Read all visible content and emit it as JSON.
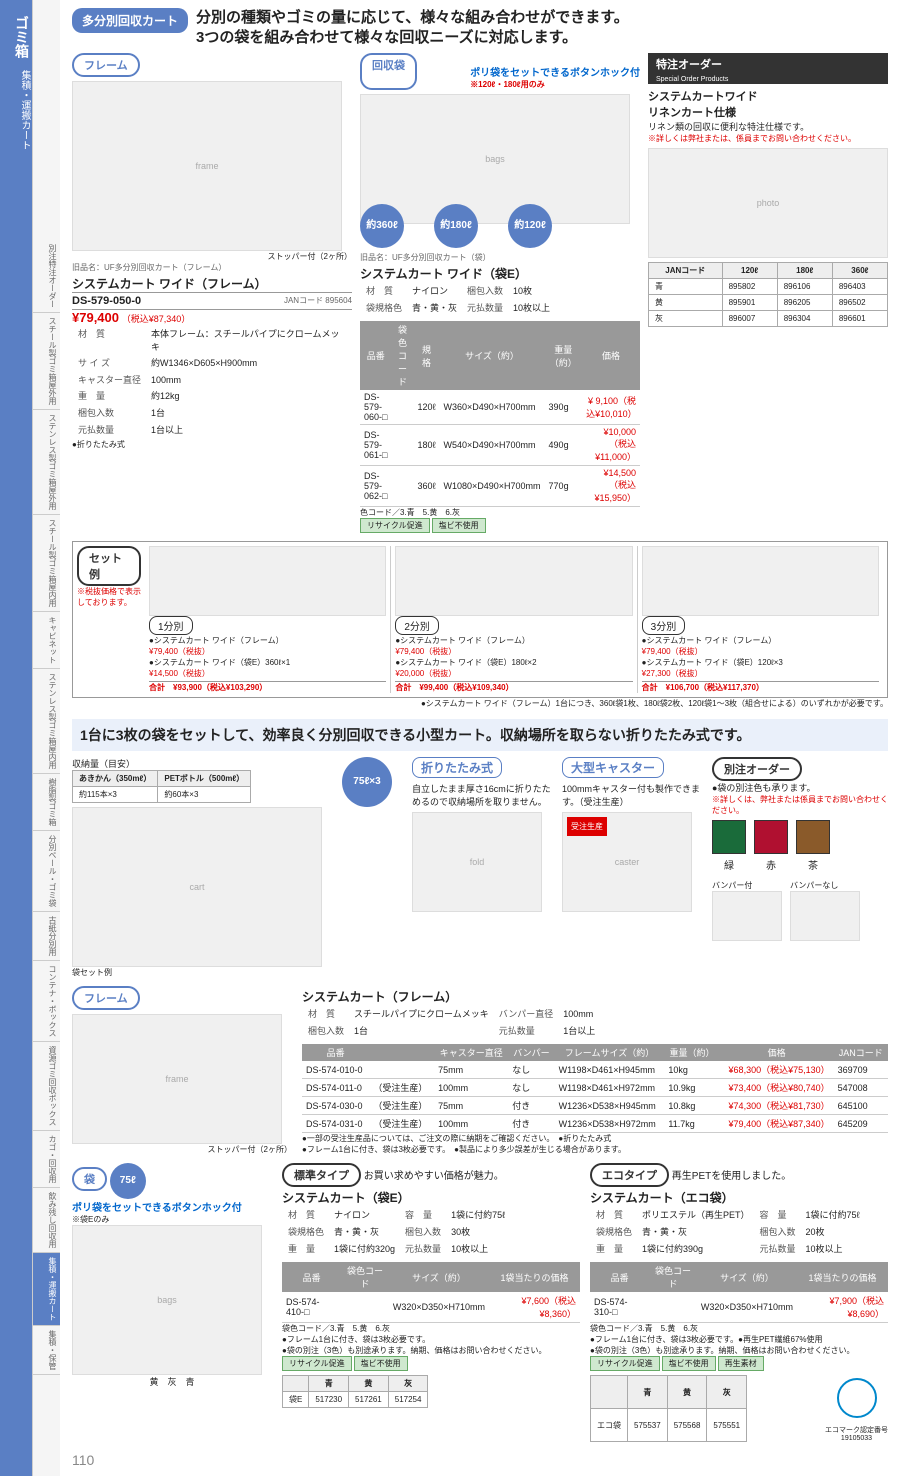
{
  "page_number": "110",
  "sidebar": {
    "main": "ゴミ箱",
    "sub": "集積・運搬カート"
  },
  "side_tabs": [
    "別注特注オーダー",
    "スチール製ゴミ箱屋外用",
    "ステンレス製ゴミ箱屋外用",
    "スチール製ゴミ箱屋内用",
    "キャビネット",
    "ステンレス製ゴミ箱屋内用",
    "樹脂製ゴミ箱",
    "分別ペール・ゴミ袋",
    "古紙分別用",
    "コンテナ・ボックス",
    "資源ゴミ回収ボックス",
    "カゴ・回収用",
    "飲み残し回収用",
    "集積・運搬カート",
    "集積・保管"
  ],
  "active_tab": 13,
  "section1": {
    "badge": "多分別回収カート",
    "lead": "分別の種類やゴミの量に応じて、様々な組み合わせができます。\n3つの袋を組み合わせて様々な回収ニーズに対応します。",
    "frame": {
      "tag": "フレーム",
      "caption": "ストッパー付（2ヶ所）",
      "old": "旧品名：UF多分別回収カート（フレーム）",
      "name": "システムカート ワイド（フレーム）",
      "sku": "DS-579-050-0",
      "jan": "JANコード 895604",
      "price": "¥79,400",
      "taxin": "（税込¥87,340）",
      "specs": [
        [
          "材　質",
          "本体フレーム：スチールパイプにクロームメッキ"
        ],
        [
          "サ イ ズ",
          "約W1346×D605×H900mm"
        ],
        [
          "キャスター直径",
          "100mm"
        ],
        [
          "重　量",
          "約12kg"
        ],
        [
          "梱包入数",
          "1台"
        ],
        [
          "元払数量",
          "1台以上"
        ]
      ],
      "fold": "●折りたたみ式"
    },
    "bags": {
      "tag": "回収袋",
      "note": "ポリ袋をセットできるボタンホック付",
      "note2": "※120ℓ・180ℓ用のみ",
      "vols": [
        "約360ℓ",
        "約180ℓ",
        "約120ℓ"
      ],
      "old": "旧品名：UF多分別回収カート（袋）",
      "name": "システムカート ワイド（袋E）",
      "specs": [
        [
          "材　質",
          "ナイロン"
        ],
        [
          "梱包入数",
          "10枚"
        ],
        [
          "袋規格色",
          "青・黄・灰"
        ],
        [
          "元払数量",
          "10枚以上"
        ]
      ],
      "th": [
        "品番",
        "袋色コード",
        "規格",
        "サイズ（約）",
        "重量（約）",
        "価格"
      ],
      "rows": [
        [
          "DS-579-060-□",
          "",
          "120ℓ",
          "W360×D490×H700mm",
          "390g",
          "¥ 9,100（税込¥10,010）"
        ],
        [
          "DS-579-061-□",
          "",
          "180ℓ",
          "W540×D490×H700mm",
          "490g",
          "¥10,000（税込¥11,000）"
        ],
        [
          "DS-579-062-□",
          "",
          "360ℓ",
          "W1080×D490×H700mm",
          "770g",
          "¥14,500（税込¥15,950）"
        ]
      ],
      "colorcode": "色コード／3.青　5.黄　6.灰",
      "chips": [
        "リサイクル促進",
        "塩ビ不使用"
      ]
    },
    "special": {
      "title": "特注オーダー",
      "sub": "Special Order Products",
      "name": "システムカートワイド\nリネンカート仕様",
      "desc": "リネン類の回収に便利な特注仕様です。",
      "red": "※詳しくは弊社または、係員までお問い合わせください。",
      "th": [
        "JANコード",
        "120ℓ",
        "180ℓ",
        "360ℓ"
      ],
      "rows": [
        [
          "青",
          "895802",
          "896106",
          "896403"
        ],
        [
          "黄",
          "895901",
          "896205",
          "896502"
        ],
        [
          "灰",
          "896007",
          "896304",
          "896601"
        ]
      ]
    },
    "sets": {
      "tag": "セット例",
      "note": "※税抜価格で表示しております。",
      "note2": "●システムカート ワイド（フレーム）1台につき、360ℓ袋1枚、180ℓ袋2枚、120ℓ袋1～3枚（組合せによる）のいずれかが必要です。",
      "items": [
        {
          "hd": "1分別",
          "lines": [
            "●システムカート ワイド（フレーム）",
            "¥79,400（税抜）",
            "●システムカート ワイド（袋E）360ℓ×1",
            "¥14,500（税抜）"
          ],
          "total": "合計　¥93,900（税込¥103,290）"
        },
        {
          "hd": "2分別",
          "lines": [
            "●システムカート ワイド（フレーム）",
            "¥79,400（税抜）",
            "●システムカート ワイド（袋E）180ℓ×2",
            "¥20,000（税抜）"
          ],
          "total": "合計　¥99,400（税込¥109,340）"
        },
        {
          "hd": "3分別",
          "lines": [
            "●システムカート ワイド（フレーム）",
            "¥79,400（税抜）",
            "●システムカート ワイド（袋E）120ℓ×3",
            "¥27,300（税抜）"
          ],
          "total": "合計　¥106,700（税込¥117,370）"
        }
      ]
    }
  },
  "section2": {
    "lead": "1台に3枚の袋をセットして、効率良く分別回収できる小型カート。収納場所を取らない折りたたみ式です。",
    "capacity": {
      "label": "収納量（目安）",
      "cans": "あきかん（350mℓ）",
      "pet": "PETボトル（500mℓ）",
      "cans_v": "約115本×3",
      "pet_v": "約60本×3"
    },
    "vol": "75ℓ×3",
    "feat1": {
      "hd": "折りたたみ式",
      "txt": "自立したまま厚さ16cmに折りたためるので収納場所を取りません。"
    },
    "feat2": {
      "hd": "大型キャスター",
      "txt": "100mmキャスター付も製作できます。（受注生産）",
      "badge": "受注生産"
    },
    "opt": {
      "hd": "別注オーダー",
      "txt": "●袋の別注色も承ります。",
      "red": "※詳しくは、弊社または係員までお問い合わせください。",
      "colors": [
        {
          "c": "#1a6b3a",
          "l": "緑"
        },
        {
          "c": "#b01030",
          "l": "赤"
        },
        {
          "c": "#8a5a2a",
          "l": "茶"
        }
      ]
    },
    "bumper": [
      "バンパー付",
      "バンパーなし"
    ],
    "frame": {
      "tag": "フレーム",
      "caption": "ストッパー付（2ヶ所）",
      "name": "システムカート（フレーム）",
      "specs": [
        [
          "材　質",
          "スチールパイプにクロームメッキ"
        ],
        [
          "バンパー直径",
          "100mm"
        ],
        [
          "梱包入数",
          "1台"
        ],
        [
          "元払数量",
          "1台以上"
        ]
      ],
      "th": [
        "品番",
        "",
        "キャスター直径",
        "バンパー",
        "フレームサイズ（約）",
        "重量（約）",
        "価格",
        "JANコード"
      ],
      "rows": [
        [
          "DS-574-010-0",
          "",
          "75mm",
          "なし",
          "W1198×D461×H945mm",
          "10kg",
          "¥68,300（税込¥75,130）",
          "369709"
        ],
        [
          "DS-574-011-0",
          "（受注生産）",
          "100mm",
          "なし",
          "W1198×D461×H972mm",
          "10.9kg",
          "¥73,400（税込¥80,740）",
          "547008"
        ],
        [
          "DS-574-030-0",
          "（受注生産）",
          "75mm",
          "付き",
          "W1236×D538×H945mm",
          "10.8kg",
          "¥74,300（税込¥81,730）",
          "645100"
        ],
        [
          "DS-574-031-0",
          "（受注生産）",
          "100mm",
          "付き",
          "W1236×D538×H972mm",
          "11.7kg",
          "¥79,400（税込¥87,340）",
          "645209"
        ]
      ],
      "notes": "●一部の受注生産品については、ご注文の際に納期をご確認ください。　●折りたたみ式\n●フレーム1台に付き、袋は3枚必要です。　●製品により多少誤差が生じる場合があります。"
    },
    "bagE": {
      "tag": "袋",
      "vol": "75ℓ",
      "note": "ポリ袋をセットできるボタンホック付",
      "note2": "※袋Eのみ",
      "caption": "黄　灰　青",
      "hd": "標準タイプ",
      "sub": "お買い求めやすい価格が魅力。",
      "name": "システムカート（袋E）",
      "specs": [
        [
          "材　質",
          "ナイロン"
        ],
        [
          "容　量",
          "1袋に付約75ℓ"
        ],
        [
          "袋規格色",
          "青・黄・灰"
        ],
        [
          "梱包入数",
          "30枚"
        ],
        [
          "重　量",
          "1袋に付約320g"
        ],
        [
          "元払数量",
          "10枚以上"
        ]
      ],
      "th": [
        "品番",
        "袋色コード",
        "サイズ（約）",
        "1袋当たりの価格"
      ],
      "row": [
        "DS-574-410-□",
        "",
        "W320×D350×H710mm",
        "¥7,600（税込¥8,360）"
      ],
      "cc": "袋色コード／3.青　5.黄　6.灰",
      "n1": "●フレーム1台に付き、袋は3枚必要です。",
      "n2": "●袋の別注（3色）も別途承ります。納期、価格はお問い合わせください。",
      "chips": [
        "リサイクル促進",
        "塩ビ不使用"
      ],
      "jan_th": [
        "",
        "青",
        "黄",
        "灰"
      ],
      "jan": [
        "袋E",
        "517230",
        "517261",
        "517254"
      ]
    },
    "eco": {
      "hd": "エコタイプ",
      "sub": "再生PETを使用しました。",
      "name": "システムカート（エコ袋）",
      "specs": [
        [
          "材　質",
          "ポリエステル（再生PET）"
        ],
        [
          "容　量",
          "1袋に付約75ℓ"
        ],
        [
          "袋規格色",
          "青・黄・灰"
        ],
        [
          "梱包入数",
          "20枚"
        ],
        [
          "重　量",
          "1袋に付約390g"
        ],
        [
          "元払数量",
          "10枚以上"
        ]
      ],
      "th": [
        "品番",
        "袋色コード",
        "サイズ（約）",
        "1袋当たりの価格"
      ],
      "row": [
        "DS-574-310-□",
        "",
        "W320×D350×H710mm",
        "¥7,900（税込¥8,690）"
      ],
      "cc": "袋色コード／3.青　5.黄　6.灰",
      "n1": "●フレーム1台に付き、袋は3枚必要です。●再生PET繊維67%使用",
      "n2": "●袋の別注（3色）も別途承ります。納期、価格はお問い合わせください。",
      "chips": [
        "リサイクル促進",
        "塩ビ不使用",
        "再生素材"
      ],
      "jan_th": [
        "",
        "青",
        "黄",
        "灰"
      ],
      "jan": [
        "エコ袋",
        "575537",
        "575568",
        "575551"
      ],
      "eco_mark": "エコマーク認定番号\n19105033"
    }
  }
}
